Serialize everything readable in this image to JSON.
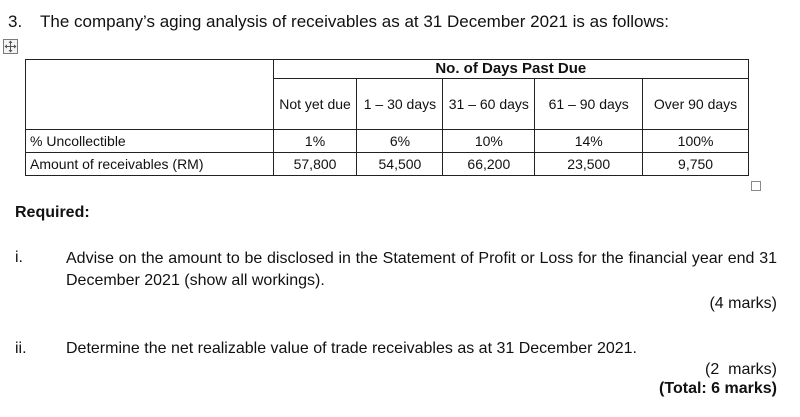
{
  "question": {
    "number": "3.",
    "intro": "The company’s aging analysis of receivables as at 31 December 2021 is as follows:"
  },
  "table": {
    "group_header": "No. of Days Past Due",
    "columns": [
      "Not yet due",
      "1 – 30 days",
      "31 – 60 days",
      "61 – 90 days",
      "Over 90 days"
    ],
    "rows": [
      {
        "label": "% Uncollectible",
        "values": [
          "1%",
          "6%",
          "10%",
          "14%",
          "100%"
        ]
      },
      {
        "label": "Amount of receivables (RM)",
        "values": [
          "57,800",
          "54,500",
          "66,200",
          "23,500",
          "9,750"
        ]
      }
    ]
  },
  "required": {
    "heading": "Required:",
    "parts": [
      {
        "numeral": "i.",
        "text": "Advise on the amount to be disclosed in the Statement of Profit or Loss for the financial year end 31 December 2021 (show all workings).",
        "marks": "(4 marks)"
      },
      {
        "numeral": "ii.",
        "text": "Determine the net realizable value of trade receivables as at 31 December 2021.",
        "marks": "(2  marks)"
      }
    ],
    "total": "(Total: 6 marks)"
  }
}
